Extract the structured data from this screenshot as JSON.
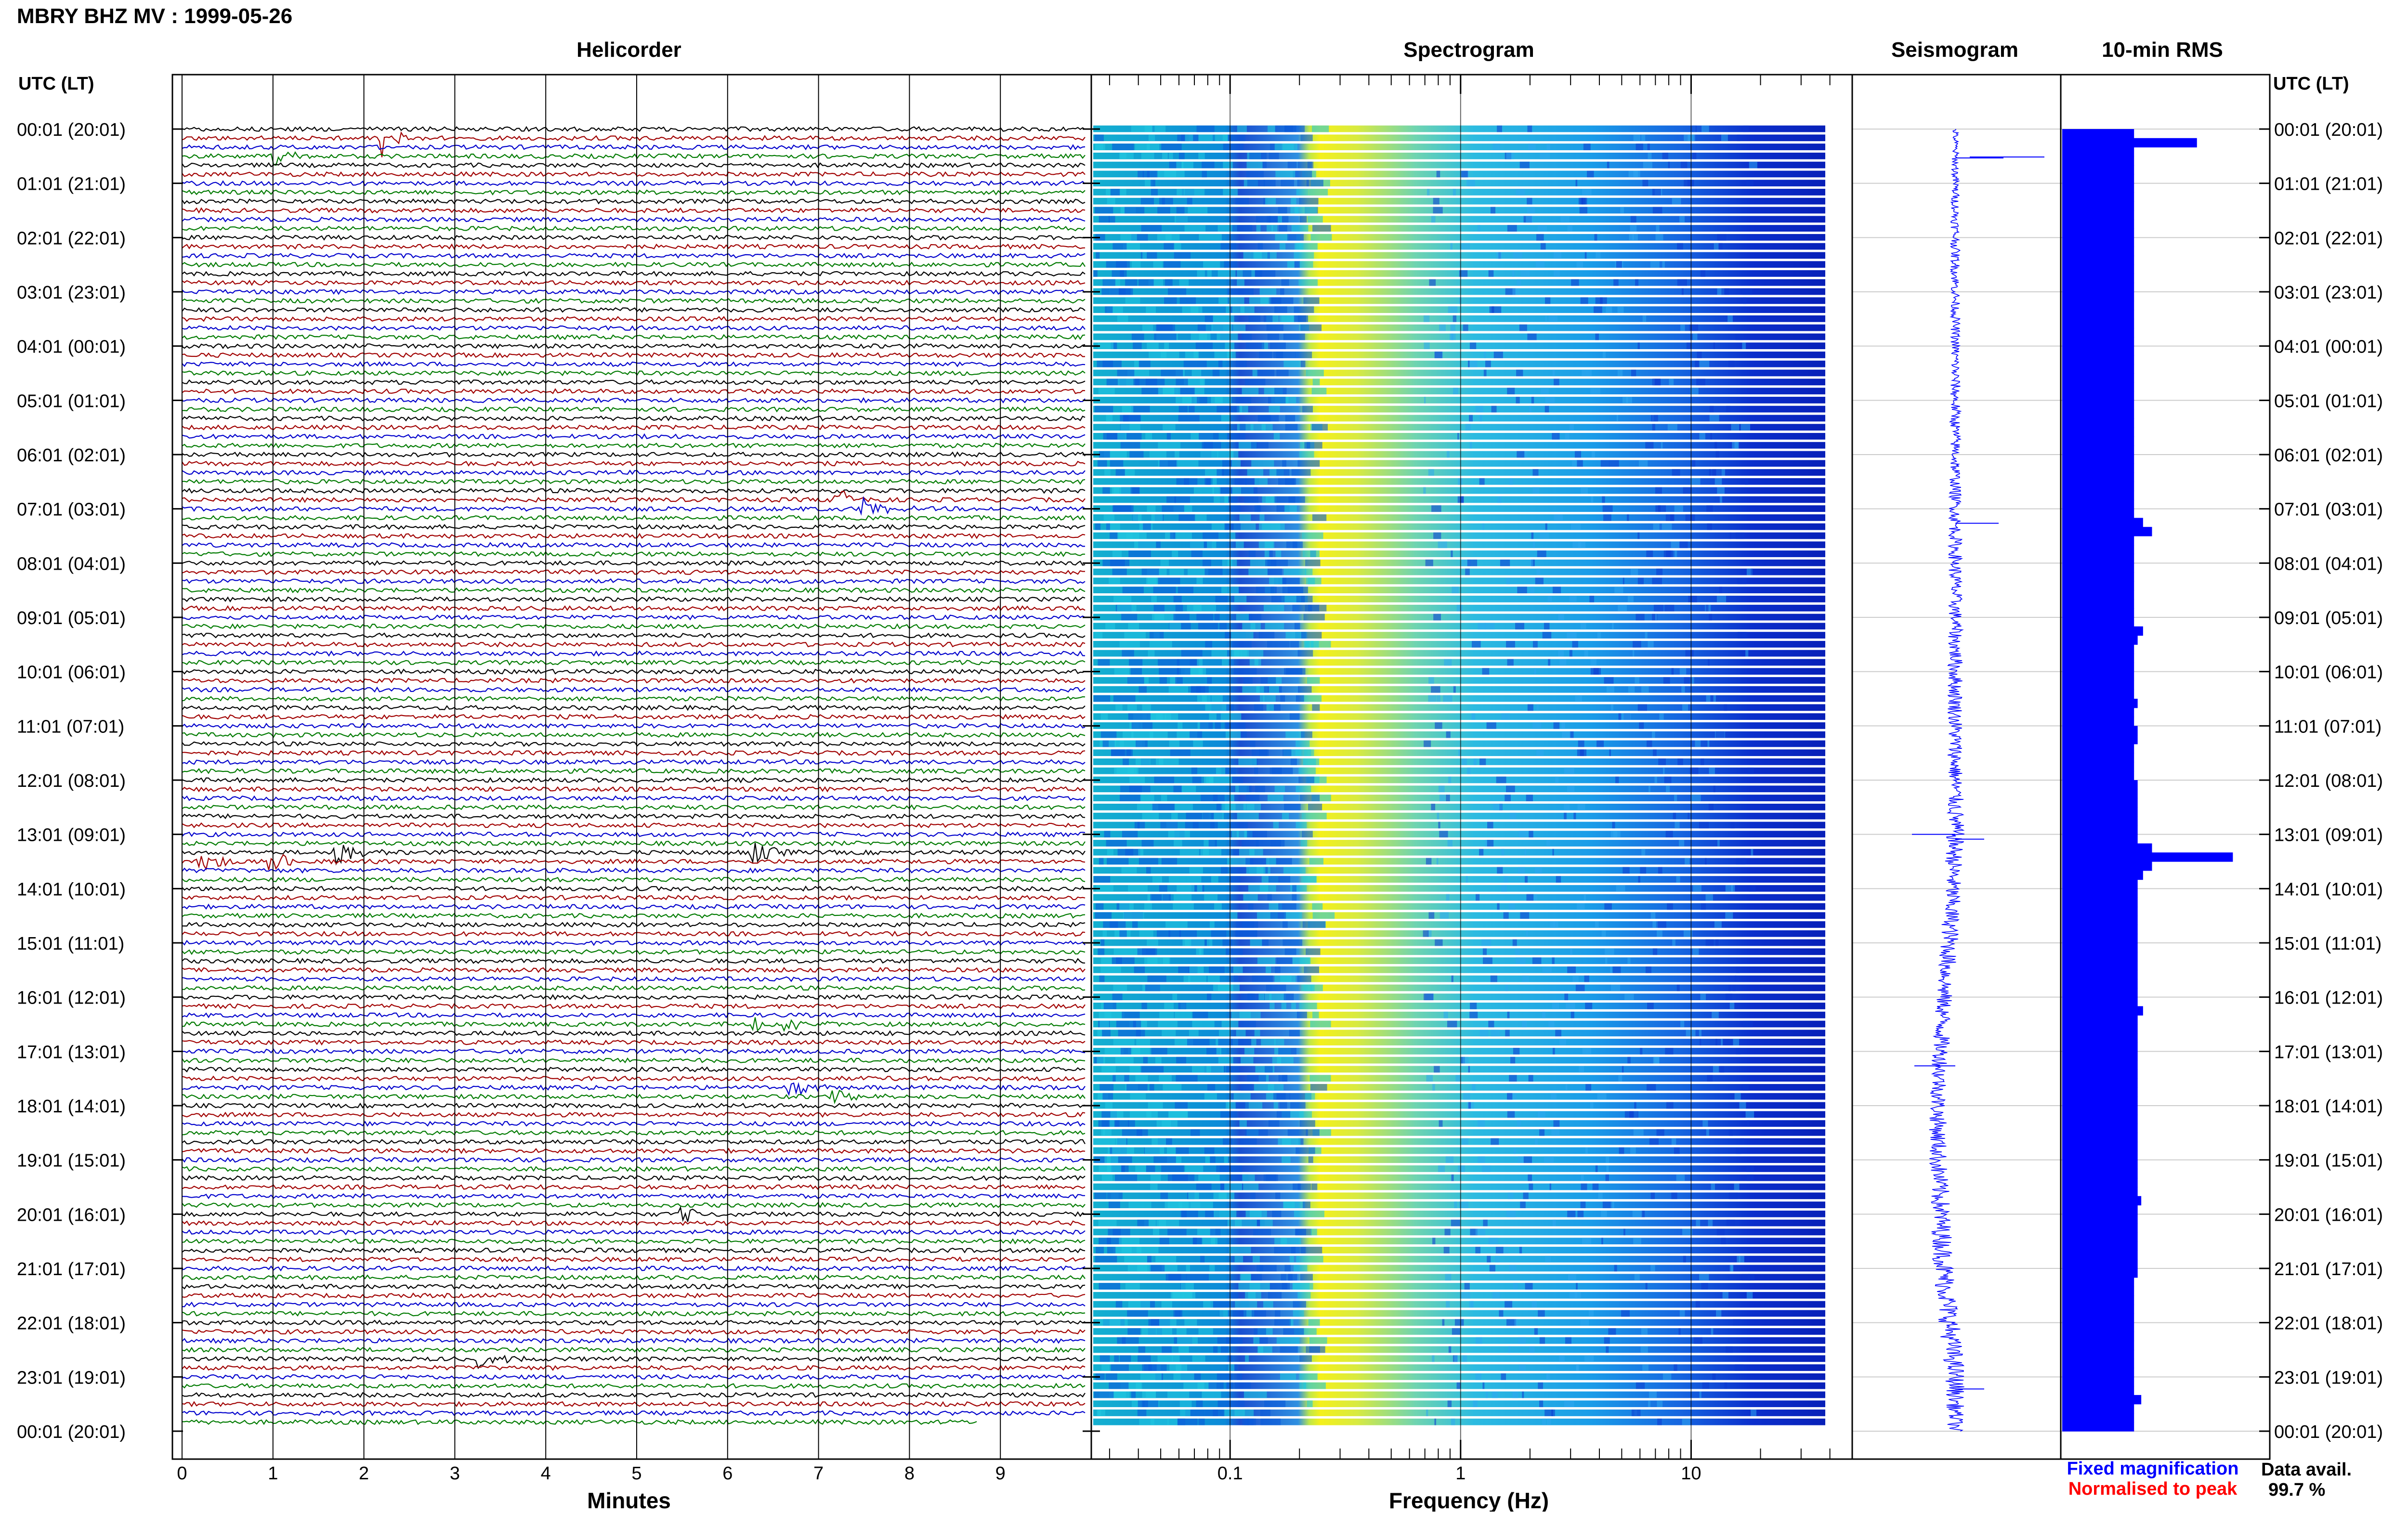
{
  "title": "MBRY BHZ MV : 1999-05-26",
  "panels": {
    "helicorder": "Helicorder",
    "spectrogram": "Spectrogram",
    "seismogram": "Seismogram",
    "rms": "10-min RMS"
  },
  "axis_header_left": "UTC (LT)",
  "axis_header_right": "UTC (LT)",
  "time_labels": [
    "00:01 (20:01)",
    "01:01 (21:01)",
    "02:01 (22:01)",
    "03:01 (23:01)",
    "04:01 (00:01)",
    "05:01 (01:01)",
    "06:01 (02:01)",
    "07:01 (03:01)",
    "08:01 (04:01)",
    "09:01 (05:01)",
    "10:01 (06:01)",
    "11:01 (07:01)",
    "12:01 (08:01)",
    "13:01 (09:01)",
    "14:01 (10:01)",
    "15:01 (11:01)",
    "16:01 (12:01)",
    "17:01 (13:01)",
    "18:01 (14:01)",
    "19:01 (15:01)",
    "20:01 (16:01)",
    "21:01 (17:01)",
    "22:01 (18:01)",
    "23:01 (19:01)",
    "00:01 (20:01)"
  ],
  "minutes_ticks": [
    "0",
    "1",
    "2",
    "3",
    "4",
    "5",
    "6",
    "7",
    "8",
    "9"
  ],
  "minutes_label": "Minutes",
  "freq_ticks": [
    "0.1",
    "1",
    "10"
  ],
  "freq_label": "Frequency (Hz)",
  "legend": {
    "fixed": "Fixed magnification",
    "normalised": "Normalised to peak",
    "fixed_color": "#0000ff",
    "normalised_color": "#ff0000"
  },
  "data_avail": {
    "label": "Data avail.",
    "value": "99.7 %"
  },
  "colors": {
    "trace_cycle": [
      "#000000",
      "#a00000",
      "#0000cc",
      "#007a00"
    ],
    "rms_bar": "#0000ff",
    "seismo": "#0000ff"
  },
  "chart_data": [
    {
      "type": "line",
      "panel": "helicorder",
      "xlabel": "Minutes",
      "xlim": [
        0,
        10
      ],
      "row_count": 144,
      "rows_per_hour": 6,
      "events": [
        {
          "row": 1,
          "minute": 2.2,
          "amplitude": 4.0
        },
        {
          "row": 3,
          "minute": 1.05,
          "amplitude": 1.5
        },
        {
          "row": 41,
          "minute": 7.2,
          "amplitude": 2.2
        },
        {
          "row": 42,
          "minute": 7.5,
          "amplitude": 2.2
        },
        {
          "row": 80,
          "minute": 1.7,
          "amplitude": 2.5
        },
        {
          "row": 80,
          "minute": 6.3,
          "amplitude": 1.8
        },
        {
          "row": 81,
          "minute": 0.2,
          "amplitude": 2.0
        },
        {
          "row": 81,
          "minute": 1.0,
          "amplitude": 2.0
        },
        {
          "row": 99,
          "minute": 6.6,
          "amplitude": 1.6
        },
        {
          "row": 99,
          "minute": 6.3,
          "amplitude": 1.3
        },
        {
          "row": 107,
          "minute": 7.2,
          "amplitude": 1.4
        },
        {
          "row": 106,
          "minute": 6.7,
          "amplitude": 1.4
        },
        {
          "row": 120,
          "minute": 5.5,
          "amplitude": 1.4
        },
        {
          "row": 136,
          "minute": 3.3,
          "amplitude": 1.8
        }
      ]
    },
    {
      "type": "heatmap",
      "panel": "spectrogram",
      "xlabel": "Frequency (Hz)",
      "xscale": "log",
      "xlim": [
        0.025,
        50
      ],
      "row_count": 144,
      "peak_band_hz": [
        0.22,
        0.9
      ]
    },
    {
      "type": "line",
      "panel": "seismogram",
      "envelope_half_width": [
        4,
        5,
        6,
        6,
        6,
        7,
        7,
        8,
        9,
        9,
        10,
        10,
        10,
        12,
        11,
        12,
        11,
        11,
        11,
        12,
        13,
        14,
        14,
        13,
        10
      ],
      "center_offset": [
        0,
        0,
        0,
        0,
        0,
        0,
        0,
        0,
        0,
        0,
        0,
        0,
        0,
        0,
        -1,
        -2,
        -4,
        -5,
        -6,
        -6,
        -5,
        -4,
        -2,
        0,
        0
      ]
    },
    {
      "type": "bar",
      "panel": "rms",
      "orientation": "horizontal",
      "bins_per_hour": 6,
      "xlim": [
        0,
        1
      ],
      "values": [
        0.4,
        0.75,
        0.4,
        0.4,
        0.4,
        0.4,
        0.4,
        0.4,
        0.4,
        0.4,
        0.4,
        0.4,
        0.4,
        0.4,
        0.4,
        0.4,
        0.4,
        0.4,
        0.4,
        0.4,
        0.4,
        0.4,
        0.4,
        0.4,
        0.4,
        0.4,
        0.4,
        0.4,
        0.4,
        0.4,
        0.4,
        0.4,
        0.4,
        0.4,
        0.4,
        0.4,
        0.4,
        0.4,
        0.4,
        0.4,
        0.4,
        0.4,
        0.4,
        0.45,
        0.5,
        0.4,
        0.4,
        0.4,
        0.4,
        0.4,
        0.4,
        0.4,
        0.4,
        0.4,
        0.4,
        0.45,
        0.42,
        0.4,
        0.4,
        0.4,
        0.4,
        0.4,
        0.4,
        0.42,
        0.4,
        0.4,
        0.42,
        0.42,
        0.4,
        0.4,
        0.4,
        0.4,
        0.42,
        0.42,
        0.42,
        0.42,
        0.42,
        0.42,
        0.42,
        0.5,
        0.95,
        0.5,
        0.45,
        0.42,
        0.42,
        0.42,
        0.42,
        0.42,
        0.42,
        0.42,
        0.42,
        0.42,
        0.42,
        0.42,
        0.42,
        0.42,
        0.42,
        0.45,
        0.42,
        0.42,
        0.42,
        0.42,
        0.42,
        0.42,
        0.42,
        0.42,
        0.42,
        0.42,
        0.42,
        0.42,
        0.42,
        0.42,
        0.42,
        0.42,
        0.42,
        0.42,
        0.42,
        0.42,
        0.44,
        0.42,
        0.42,
        0.42,
        0.42,
        0.42,
        0.42,
        0.42,
        0.42,
        0.4,
        0.4,
        0.4,
        0.4,
        0.4,
        0.4,
        0.4,
        0.4,
        0.4,
        0.4,
        0.4,
        0.4,
        0.4,
        0.44,
        0.4,
        0.4,
        0.4
      ]
    }
  ]
}
